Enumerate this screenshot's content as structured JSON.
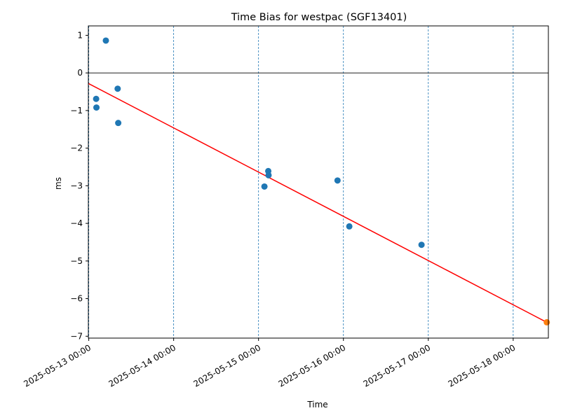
{
  "chart_data": {
    "type": "scatter",
    "title": "Time Bias for westpac (SGF13401)",
    "xlabel": "Time",
    "ylabel": "ms",
    "x_scale": "datetime",
    "xlim": [
      "2025-05-12 23:53",
      "2025-05-18 09:57"
    ],
    "ylim": [
      -7.05,
      1.25
    ],
    "yticks": [
      1,
      0,
      -1,
      -2,
      -3,
      -4,
      -5,
      -6,
      -7
    ],
    "ytick_labels": [
      "1",
      "0",
      "−1",
      "−2",
      "−3",
      "−4",
      "−5",
      "−6",
      "−7"
    ],
    "xticks": [
      "2025-05-13 00:00",
      "2025-05-14 00:00",
      "2025-05-15 00:00",
      "2025-05-16 00:00",
      "2025-05-17 00:00",
      "2025-05-18 00:00"
    ],
    "xtick_labels": [
      "2025-05-13 00:00",
      "2025-05-14 00:00",
      "2025-05-15 00:00",
      "2025-05-16 00:00",
      "2025-05-17 00:00",
      "2025-05-18 00:00"
    ],
    "vertical_gridlines_at_xticks": true,
    "horizontal_zero_line": true,
    "series": [
      {
        "color": "#1f77b4",
        "points": [
          {
            "x": "2025-05-13 02:05",
            "y": -0.69
          },
          {
            "x": "2025-05-13 02:10",
            "y": -0.92
          },
          {
            "x": "2025-05-13 04:50",
            "y": 0.86
          },
          {
            "x": "2025-05-13 08:10",
            "y": -0.42
          },
          {
            "x": "2025-05-13 08:20",
            "y": -1.33
          },
          {
            "x": "2025-05-15 01:40",
            "y": -3.02
          },
          {
            "x": "2025-05-15 02:45",
            "y": -2.61
          },
          {
            "x": "2025-05-15 02:50",
            "y": -2.72
          },
          {
            "x": "2025-05-15 22:20",
            "y": -2.86
          },
          {
            "x": "2025-05-16 01:40",
            "y": -4.08
          },
          {
            "x": "2025-05-16 22:05",
            "y": -4.57
          }
        ]
      },
      {
        "color": "#ff7f0e",
        "points": [
          {
            "x": "2025-05-18 09:30",
            "y": -6.63
          }
        ]
      }
    ],
    "trend_line": {
      "color": "#ff0000",
      "from": {
        "x": "2025-05-12 23:53",
        "y": -0.28
      },
      "to": {
        "x": "2025-05-18 09:30",
        "y": -6.63
      }
    }
  }
}
